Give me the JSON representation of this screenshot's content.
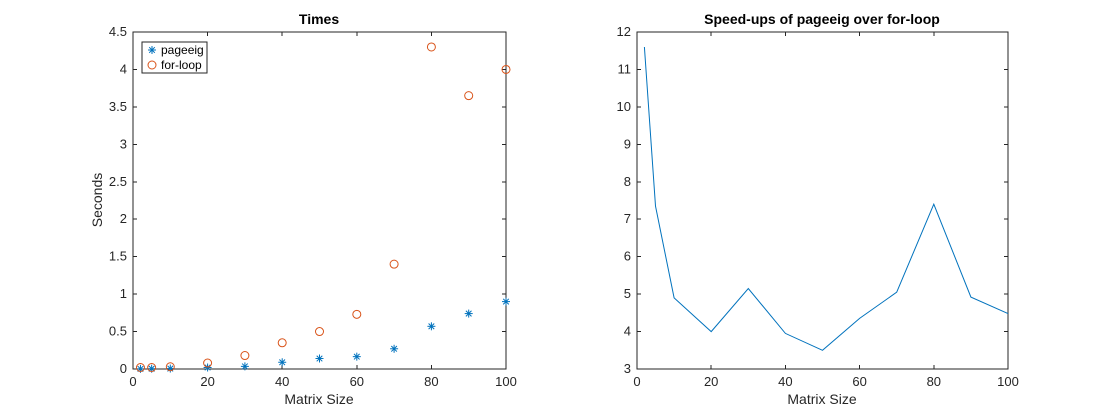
{
  "chart_data": [
    {
      "type": "scatter",
      "title": "Times",
      "xlabel": "Matrix Size",
      "ylabel": "Seconds",
      "xlim": [
        0,
        100
      ],
      "ylim": [
        0,
        4.5
      ],
      "xticks": [
        0,
        20,
        40,
        60,
        80,
        100
      ],
      "yticks": [
        0,
        0.5,
        1,
        1.5,
        2,
        2.5,
        3,
        3.5,
        4,
        4.5
      ],
      "ytick_labels": [
        "0",
        "0.5",
        "1",
        "1.5",
        "2",
        "2.5",
        "3",
        "3.5",
        "4",
        "4.5"
      ],
      "x": [
        2,
        5,
        10,
        20,
        30,
        40,
        50,
        60,
        70,
        80,
        90,
        100
      ],
      "grid": false,
      "legend_position": "top-left",
      "series": [
        {
          "name": "pageeig",
          "marker": "asterisk",
          "color": "#0072BD",
          "values": [
            0.002,
            0.004,
            0.006,
            0.02,
            0.035,
            0.09,
            0.14,
            0.165,
            0.27,
            0.57,
            0.74,
            0.9
          ]
        },
        {
          "name": "for-loop",
          "marker": "circle",
          "color": "#D95319",
          "values": [
            0.02,
            0.02,
            0.03,
            0.08,
            0.18,
            0.35,
            0.5,
            0.73,
            1.4,
            4.3,
            3.65,
            4.0
          ]
        }
      ]
    },
    {
      "type": "line",
      "title": "Speed-ups of pageeig over for-loop",
      "xlabel": "Matrix Size",
      "ylabel": "",
      "xlim": [
        0,
        100
      ],
      "ylim": [
        3,
        12
      ],
      "xticks": [
        0,
        20,
        40,
        60,
        80,
        100
      ],
      "yticks": [
        3,
        4,
        5,
        6,
        7,
        8,
        9,
        10,
        11,
        12
      ],
      "grid": false,
      "x": [
        2,
        5,
        10,
        20,
        30,
        40,
        50,
        60,
        70,
        80,
        90,
        100
      ],
      "series": [
        {
          "color": "#0072BD",
          "values": [
            11.6,
            7.35,
            4.9,
            4.0,
            5.15,
            3.95,
            3.5,
            4.35,
            5.05,
            7.4,
            4.92,
            4.48
          ]
        }
      ]
    }
  ]
}
